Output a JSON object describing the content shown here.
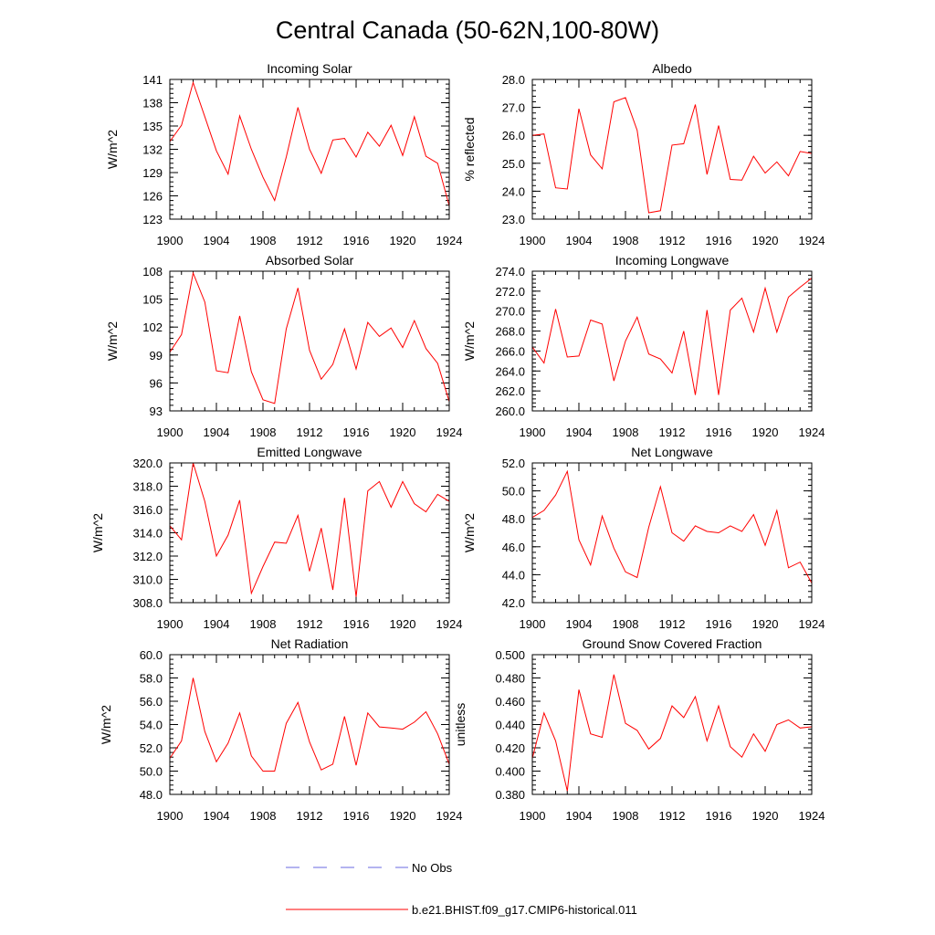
{
  "figure": {
    "title": "Central Canada (50-62N,100-80W)",
    "legend": [
      {
        "label": "No Obs",
        "color": "#6a6ae0",
        "style": "dashed"
      },
      {
        "label": "b.e21.BHIST.f09_g17.CMIP6-historical.011",
        "color": "#ff0000",
        "style": "solid"
      }
    ]
  },
  "chart_data": [
    {
      "type": "line",
      "title": "Incoming Solar",
      "ylabel": "W/m^2",
      "xlim": [
        1900,
        1924
      ],
      "ylim": [
        123,
        141
      ],
      "xticks": [
        1900,
        1904,
        1908,
        1912,
        1916,
        1920,
        1924
      ],
      "yticks": [
        "123",
        "126",
        "129",
        "132",
        "135",
        "138",
        "141"
      ],
      "x": [
        1900,
        1901,
        1902,
        1903,
        1904,
        1905,
        1906,
        1907,
        1908,
        1909,
        1910,
        1911,
        1912,
        1913,
        1914,
        1915,
        1916,
        1917,
        1918,
        1919,
        1920,
        1921,
        1922,
        1923,
        1924
      ],
      "series": [
        {
          "name": "b.e21.BHIST.f09_g17.CMIP6-historical.011",
          "color": "#ff0000",
          "values": [
            133.0,
            135.1,
            140.6,
            136.2,
            131.8,
            128.8,
            136.3,
            132.0,
            128.4,
            125.4,
            131.0,
            137.4,
            132.0,
            128.9,
            133.2,
            133.4,
            131.0,
            134.2,
            132.4,
            135.1,
            131.2,
            136.2,
            131.1,
            130.2,
            124.7
          ]
        }
      ]
    },
    {
      "type": "line",
      "title": "Albedo",
      "ylabel": "% reflected",
      "xlim": [
        1900,
        1924
      ],
      "ylim": [
        23.0,
        28.0
      ],
      "xticks": [
        1900,
        1904,
        1908,
        1912,
        1916,
        1920,
        1924
      ],
      "yticks": [
        "23.0",
        "24.0",
        "25.0",
        "26.0",
        "27.0",
        "28.0"
      ],
      "x": [
        1900,
        1901,
        1902,
        1903,
        1904,
        1905,
        1906,
        1907,
        1908,
        1909,
        1910,
        1911,
        1912,
        1913,
        1914,
        1915,
        1916,
        1917,
        1918,
        1919,
        1920,
        1921,
        1922,
        1923,
        1924
      ],
      "series": [
        {
          "name": "b.e21.BHIST.f09_g17.CMIP6-historical.011",
          "color": "#ff0000",
          "values": [
            26.0,
            26.05,
            24.12,
            24.08,
            26.95,
            25.3,
            24.8,
            27.2,
            27.35,
            26.18,
            23.23,
            23.3,
            25.65,
            25.7,
            27.1,
            24.6,
            26.35,
            24.42,
            24.4,
            25.25,
            24.65,
            25.05,
            24.55,
            25.42,
            25.35
          ]
        }
      ]
    },
    {
      "type": "line",
      "title": "Absorbed Solar",
      "ylabel": "W/m^2",
      "xlim": [
        1900,
        1924
      ],
      "ylim": [
        93,
        108
      ],
      "xticks": [
        1900,
        1904,
        1908,
        1912,
        1916,
        1920,
        1924
      ],
      "yticks": [
        "93",
        "96",
        "99",
        "102",
        "105",
        "108"
      ],
      "x": [
        1900,
        1901,
        1902,
        1903,
        1904,
        1905,
        1906,
        1907,
        1908,
        1909,
        1910,
        1911,
        1912,
        1913,
        1914,
        1915,
        1916,
        1917,
        1918,
        1919,
        1920,
        1921,
        1922,
        1923,
        1924
      ],
      "series": [
        {
          "name": "b.e21.BHIST.f09_g17.CMIP6-historical.011",
          "color": "#ff0000",
          "values": [
            99.3,
            101.2,
            107.8,
            104.7,
            97.3,
            97.1,
            103.2,
            97.2,
            94.2,
            93.8,
            101.8,
            106.2,
            99.5,
            96.4,
            98.0,
            101.8,
            97.5,
            102.5,
            101.0,
            101.9,
            99.8,
            102.7,
            99.7,
            98.1,
            94.0
          ]
        }
      ]
    },
    {
      "type": "line",
      "title": "Incoming Longwave",
      "ylabel": "W/m^2",
      "xlim": [
        1900,
        1924
      ],
      "ylim": [
        260.0,
        274.0
      ],
      "xticks": [
        1900,
        1904,
        1908,
        1912,
        1916,
        1920,
        1924
      ],
      "yticks": [
        "260.0",
        "262.0",
        "264.0",
        "266.0",
        "268.0",
        "270.0",
        "272.0",
        "274.0"
      ],
      "x": [
        1900,
        1901,
        1902,
        1903,
        1904,
        1905,
        1906,
        1907,
        1908,
        1909,
        1910,
        1911,
        1912,
        1913,
        1914,
        1915,
        1916,
        1917,
        1918,
        1919,
        1920,
        1921,
        1922,
        1923,
        1924
      ],
      "series": [
        {
          "name": "b.e21.BHIST.f09_g17.CMIP6-historical.011",
          "color": "#ff0000",
          "values": [
            266.4,
            264.8,
            270.2,
            265.4,
            265.5,
            269.1,
            268.7,
            263.0,
            267.0,
            269.4,
            265.7,
            265.2,
            263.8,
            268.0,
            261.6,
            270.1,
            261.6,
            270.1,
            271.3,
            267.9,
            272.3,
            267.9,
            271.4,
            272.4,
            273.3
          ]
        }
      ]
    },
    {
      "type": "line",
      "title": "Emitted Longwave",
      "ylabel": "W/m^2",
      "xlim": [
        1900,
        1924
      ],
      "ylim": [
        308.0,
        320.0
      ],
      "xticks": [
        1900,
        1904,
        1908,
        1912,
        1916,
        1920,
        1924
      ],
      "yticks": [
        "308.0",
        "310.0",
        "312.0",
        "314.0",
        "316.0",
        "318.0",
        "320.0"
      ],
      "x": [
        1900,
        1901,
        1902,
        1903,
        1904,
        1905,
        1906,
        1907,
        1908,
        1909,
        1910,
        1911,
        1912,
        1913,
        1914,
        1915,
        1916,
        1917,
        1918,
        1919,
        1920,
        1921,
        1922,
        1923,
        1924
      ],
      "series": [
        {
          "name": "b.e21.BHIST.f09_g17.CMIP6-historical.011",
          "color": "#ff0000",
          "values": [
            314.6,
            313.4,
            320.0,
            316.7,
            312.0,
            313.8,
            316.8,
            308.8,
            311.1,
            313.2,
            313.1,
            315.5,
            310.7,
            314.4,
            309.1,
            317.0,
            308.5,
            317.6,
            318.4,
            316.2,
            318.4,
            316.5,
            315.8,
            317.3,
            316.7
          ]
        }
      ]
    },
    {
      "type": "line",
      "title": "Net Longwave",
      "ylabel": "W/m^2",
      "xlim": [
        1900,
        1924
      ],
      "ylim": [
        42.0,
        52.0
      ],
      "xticks": [
        1900,
        1904,
        1908,
        1912,
        1916,
        1920,
        1924
      ],
      "yticks": [
        "42.0",
        "44.0",
        "46.0",
        "48.0",
        "50.0",
        "52.0"
      ],
      "x": [
        1900,
        1901,
        1902,
        1903,
        1904,
        1905,
        1906,
        1907,
        1908,
        1909,
        1910,
        1911,
        1912,
        1913,
        1914,
        1915,
        1916,
        1917,
        1918,
        1919,
        1920,
        1921,
        1922,
        1923,
        1924
      ],
      "series": [
        {
          "name": "b.e21.BHIST.f09_g17.CMIP6-historical.011",
          "color": "#ff0000",
          "values": [
            48.1,
            48.6,
            49.7,
            51.4,
            46.5,
            44.7,
            48.2,
            45.9,
            44.2,
            43.8,
            47.4,
            50.3,
            47.0,
            46.4,
            47.5,
            47.1,
            47.0,
            47.5,
            47.1,
            48.3,
            46.1,
            48.6,
            44.5,
            44.9,
            43.4
          ]
        }
      ]
    },
    {
      "type": "line",
      "title": "Net Radiation",
      "ylabel": "W/m^2",
      "xlim": [
        1900,
        1924
      ],
      "ylim": [
        48.0,
        60.0
      ],
      "xticks": [
        1900,
        1904,
        1908,
        1912,
        1916,
        1920,
        1924
      ],
      "yticks": [
        "48.0",
        "50.0",
        "52.0",
        "54.0",
        "56.0",
        "58.0",
        "60.0"
      ],
      "x": [
        1900,
        1901,
        1902,
        1903,
        1904,
        1905,
        1906,
        1907,
        1908,
        1909,
        1910,
        1911,
        1912,
        1913,
        1914,
        1915,
        1916,
        1917,
        1918,
        1919,
        1920,
        1921,
        1922,
        1923,
        1924
      ],
      "series": [
        {
          "name": "b.e21.BHIST.f09_g17.CMIP6-historical.011",
          "color": "#ff0000",
          "values": [
            51.1,
            52.6,
            58.0,
            53.4,
            50.8,
            52.4,
            55.0,
            51.3,
            50.0,
            50.0,
            54.1,
            55.9,
            52.5,
            50.1,
            50.6,
            54.7,
            50.5,
            55.0,
            53.8,
            53.7,
            53.6,
            54.2,
            55.1,
            53.2,
            50.6
          ]
        }
      ]
    },
    {
      "type": "line",
      "title": "Ground Snow Covered Fraction",
      "ylabel": "unitless",
      "xlim": [
        1900,
        1924
      ],
      "ylim": [
        0.38,
        0.5
      ],
      "xticks": [
        1900,
        1904,
        1908,
        1912,
        1916,
        1920,
        1924
      ],
      "yticks": [
        "0.380",
        "0.400",
        "0.420",
        "0.440",
        "0.460",
        "0.480",
        "0.500"
      ],
      "x": [
        1900,
        1901,
        1902,
        1903,
        1904,
        1905,
        1906,
        1907,
        1908,
        1909,
        1910,
        1911,
        1912,
        1913,
        1914,
        1915,
        1916,
        1917,
        1918,
        1919,
        1920,
        1921,
        1922,
        1923,
        1924
      ],
      "series": [
        {
          "name": "b.e21.BHIST.f09_g17.CMIP6-historical.011",
          "color": "#ff0000",
          "values": [
            0.411,
            0.45,
            0.426,
            0.383,
            0.47,
            0.432,
            0.429,
            0.483,
            0.441,
            0.435,
            0.419,
            0.428,
            0.456,
            0.446,
            0.464,
            0.426,
            0.456,
            0.421,
            0.412,
            0.432,
            0.417,
            0.44,
            0.444,
            0.437,
            0.438
          ]
        }
      ]
    }
  ]
}
